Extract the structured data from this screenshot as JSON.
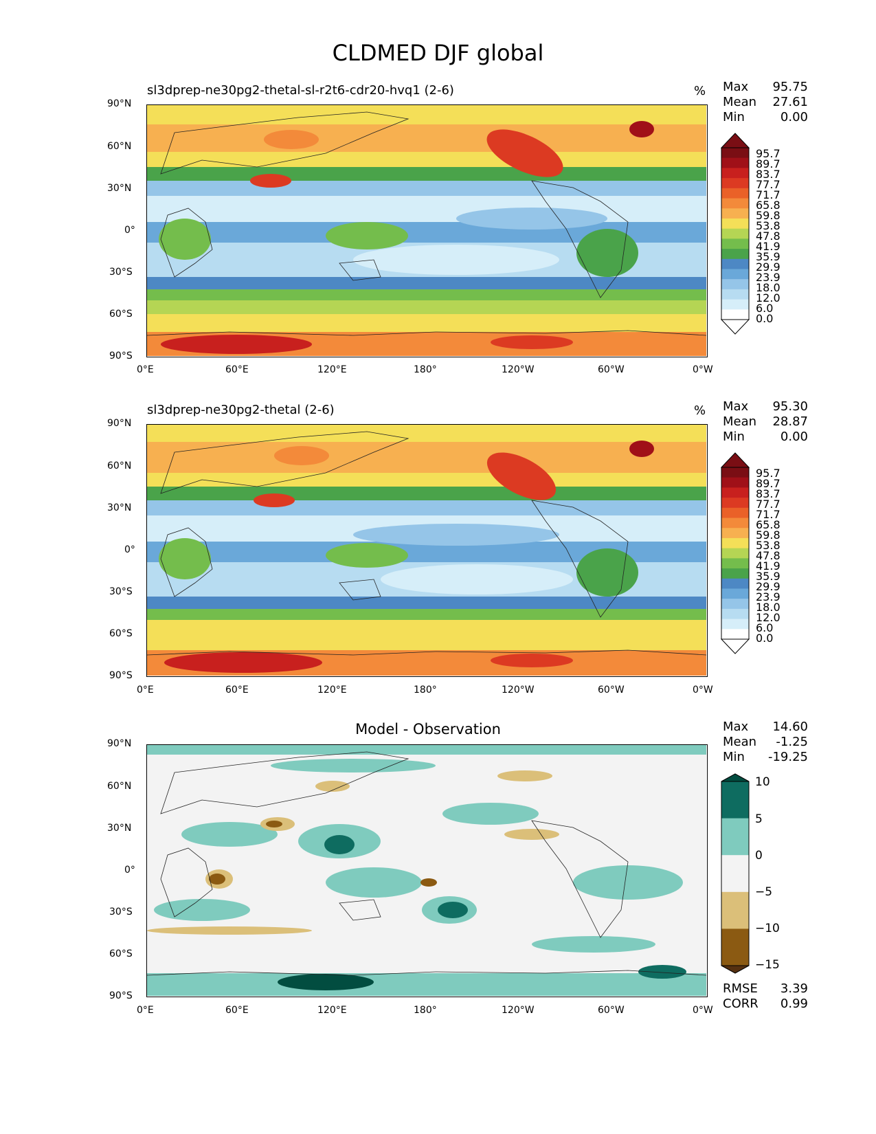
{
  "title": "CLDMED DJF global",
  "colors": {
    "seq": [
      "#ffffff",
      "#d6eef9",
      "#b7dcf1",
      "#95c5e8",
      "#6aa8d9",
      "#4d88c4",
      "#4aa34a",
      "#74bd4c",
      "#b5d554",
      "#f4df58",
      "#f7b050",
      "#f38a3a",
      "#ea6128",
      "#dc3a22",
      "#c8201e",
      "#a01018",
      "#7a0e14"
    ],
    "diff": [
      "#553010",
      "#8b5a12",
      "#dbbf79",
      "#f3f3f3",
      "#7fcbbe",
      "#0e6c60",
      "#024d40"
    ]
  },
  "chart_data": [
    {
      "type": "heatmap",
      "panel": "test",
      "title": "sl3dprep-ne30pg2-thetal-sl-r2t6-cdr20-hvq1 (2-6)",
      "units": "%",
      "stats": [
        {
          "label": "Max",
          "value": "95.75"
        },
        {
          "label": "Mean",
          "value": "27.61"
        },
        {
          "label": "Min",
          "value": "0.00"
        }
      ],
      "colorbar_levels": [
        "95.7",
        "89.7",
        "83.7",
        "77.7",
        "71.7",
        "65.8",
        "59.8",
        "53.8",
        "47.8",
        "41.9",
        "35.9",
        "29.9",
        "23.9",
        "18.0",
        "12.0",
        "6.0",
        "0.0"
      ],
      "x_ticks": [
        "0°E",
        "60°E",
        "120°E",
        "180°",
        "120°W",
        "60°W",
        "0°W"
      ],
      "y_ticks": [
        "90°N",
        "60°N",
        "30°N",
        "0°",
        "30°S",
        "60°S",
        "90°S"
      ]
    },
    {
      "type": "heatmap",
      "panel": "reference",
      "title": "sl3dprep-ne30pg2-thetal (2-6)",
      "units": "%",
      "stats": [
        {
          "label": "Max",
          "value": "95.30"
        },
        {
          "label": "Mean",
          "value": "28.87"
        },
        {
          "label": "Min",
          "value": "0.00"
        }
      ],
      "colorbar_levels": [
        "95.7",
        "89.7",
        "83.7",
        "77.7",
        "71.7",
        "65.8",
        "59.8",
        "53.8",
        "47.8",
        "41.9",
        "35.9",
        "29.9",
        "23.9",
        "18.0",
        "12.0",
        "6.0",
        "0.0"
      ],
      "x_ticks": [
        "0°E",
        "60°E",
        "120°E",
        "180°",
        "120°W",
        "60°W",
        "0°W"
      ],
      "y_ticks": [
        "90°N",
        "60°N",
        "30°N",
        "0°",
        "30°S",
        "60°S",
        "90°S"
      ]
    },
    {
      "type": "heatmap",
      "panel": "difference",
      "title": "Model - Observation",
      "stats": [
        {
          "label": "Max",
          "value": "14.60"
        },
        {
          "label": "Mean",
          "value": "-1.25"
        },
        {
          "label": "Min",
          "value": "-19.25"
        }
      ],
      "colorbar_levels": [
        "10",
        "5",
        "0",
        "−5",
        "−10",
        "−15"
      ],
      "metrics": [
        {
          "label": "RMSE",
          "value": "3.39"
        },
        {
          "label": "CORR",
          "value": "0.99"
        }
      ],
      "x_ticks": [
        "0°E",
        "60°E",
        "120°E",
        "180°",
        "120°W",
        "60°W",
        "0°W"
      ],
      "y_ticks": [
        "90°N",
        "60°N",
        "30°N",
        "0°",
        "30°S",
        "60°S",
        "90°S"
      ]
    }
  ]
}
